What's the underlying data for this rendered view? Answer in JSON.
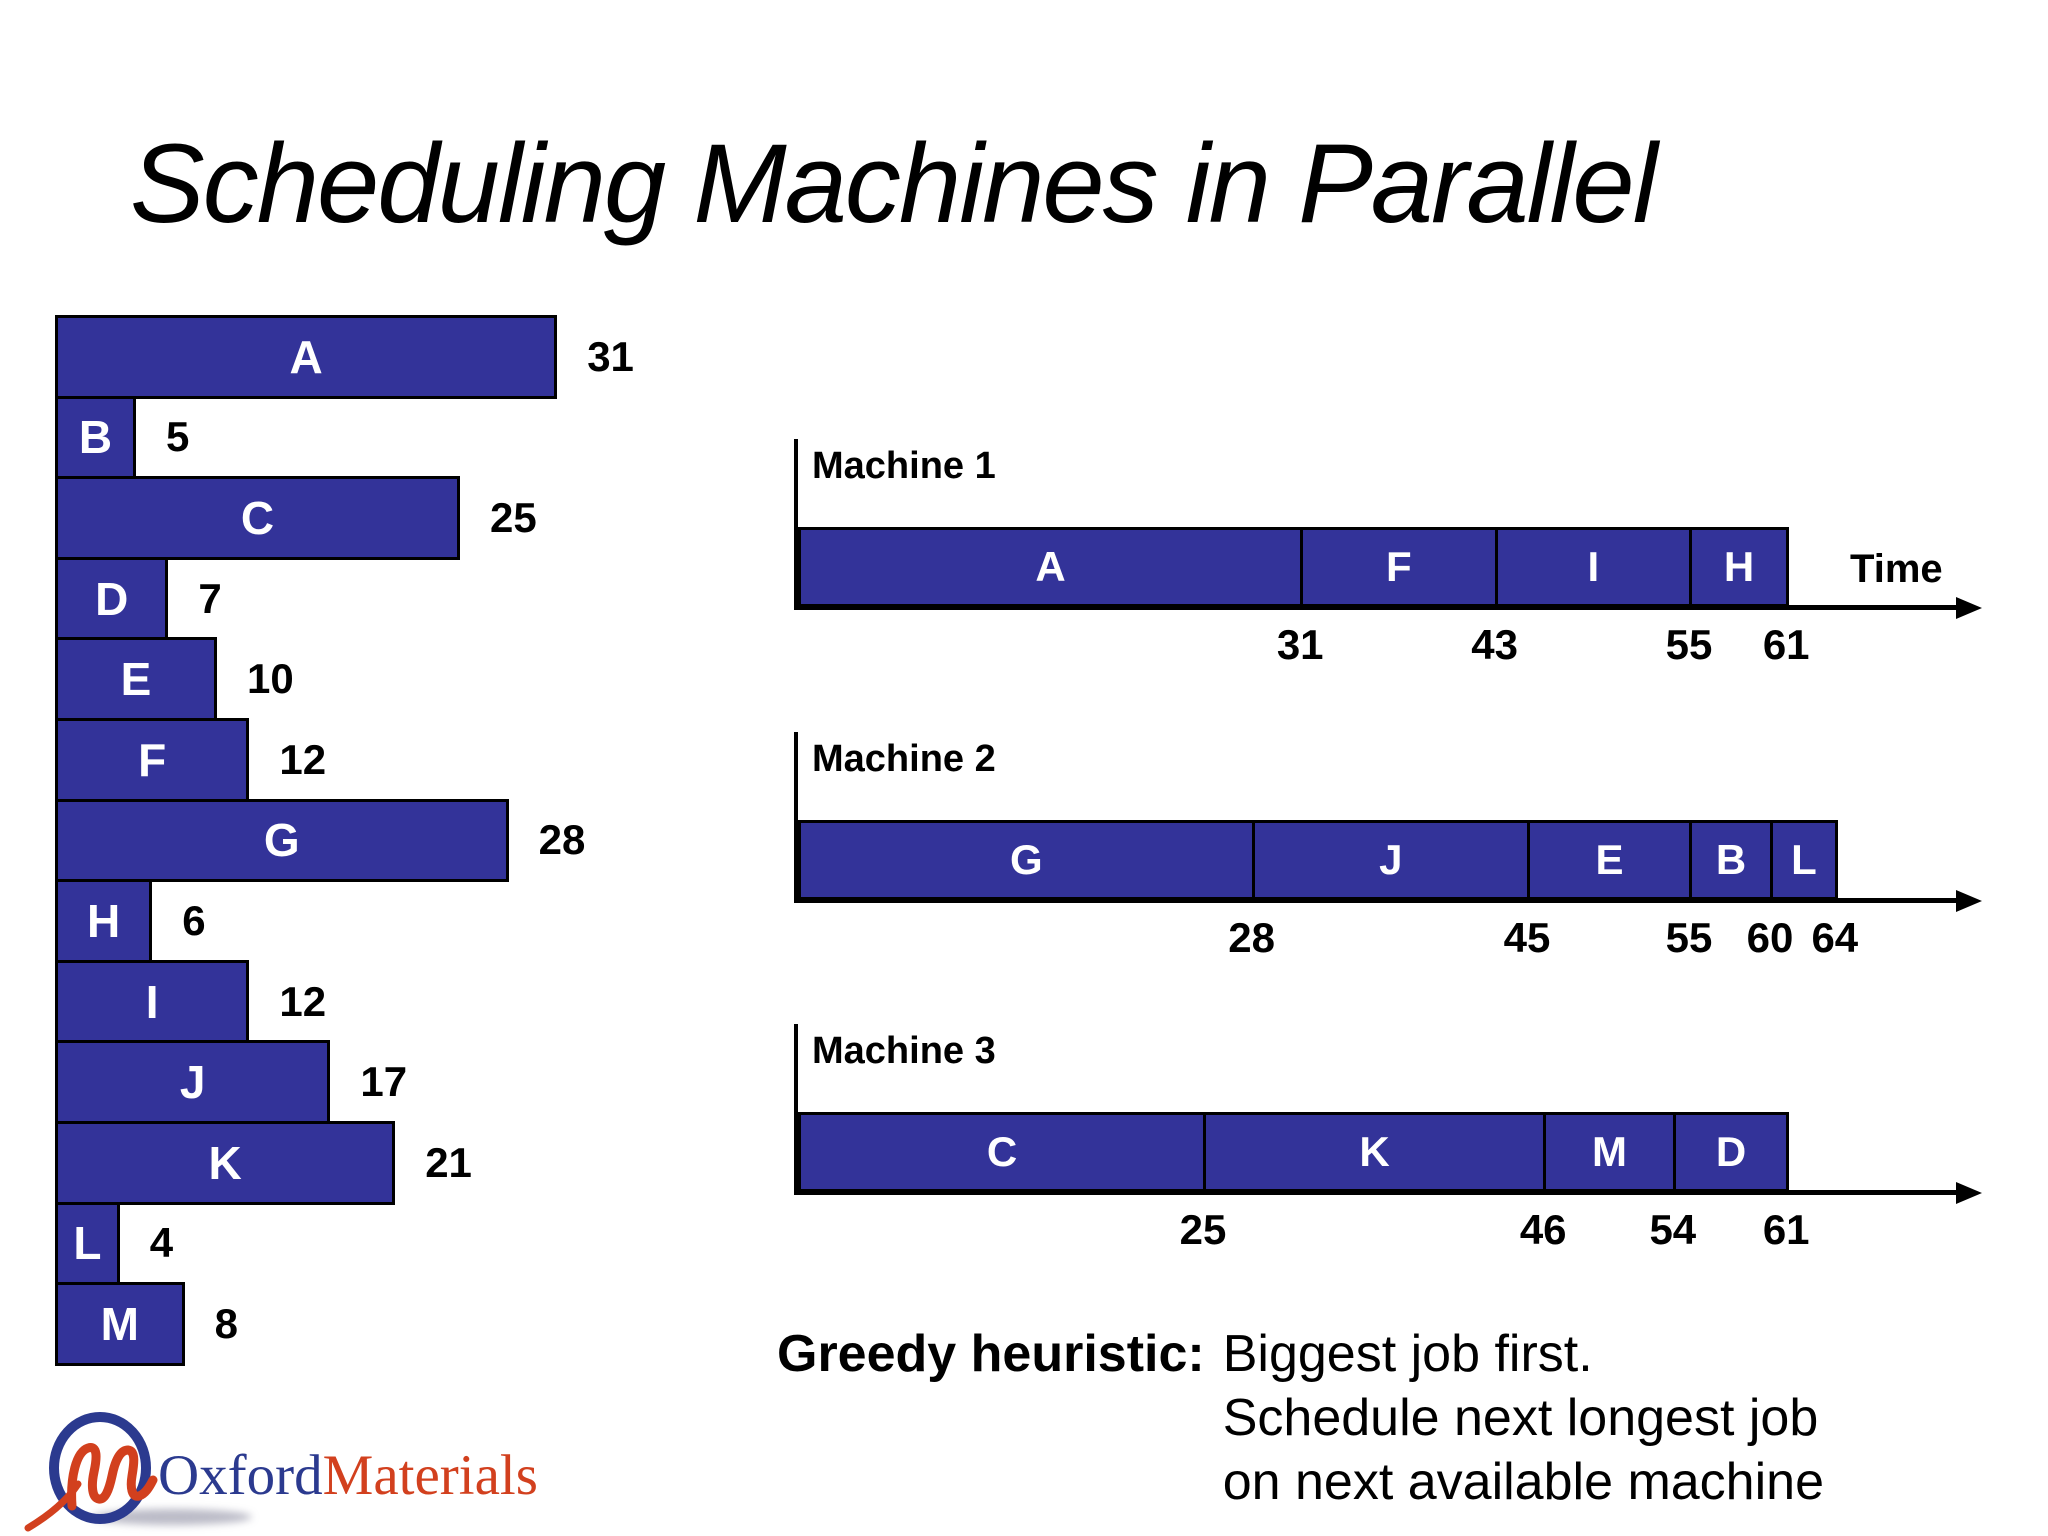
{
  "title": "Scheduling Machines in Parallel",
  "colors": {
    "bar_fill": "#333399",
    "logo_navy": "#2b3a8f",
    "logo_red": "#d2401e"
  },
  "chart_data": [
    {
      "type": "bar",
      "name": "job-durations",
      "orientation": "horizontal",
      "categories": [
        "A",
        "B",
        "C",
        "D",
        "E",
        "F",
        "G",
        "H",
        "I",
        "J",
        "K",
        "L",
        "M"
      ],
      "values": [
        31,
        5,
        25,
        7,
        10,
        12,
        28,
        6,
        12,
        17,
        21,
        4,
        8
      ],
      "title": "",
      "xlabel": "",
      "ylabel": "",
      "legend": false,
      "grid": false
    },
    {
      "type": "bar",
      "subtype": "gantt",
      "title": "Machine 1",
      "xlabel": "Time",
      "segments": [
        {
          "label": "A",
          "start": 0,
          "end": 31
        },
        {
          "label": "F",
          "start": 31,
          "end": 43
        },
        {
          "label": "I",
          "start": 43,
          "end": 55
        },
        {
          "label": "H",
          "start": 55,
          "end": 61
        }
      ],
      "ticks": [
        31,
        43,
        55,
        61
      ]
    },
    {
      "type": "bar",
      "subtype": "gantt",
      "title": "Machine 2",
      "xlabel": "",
      "segments": [
        {
          "label": "G",
          "start": 0,
          "end": 28
        },
        {
          "label": "J",
          "start": 28,
          "end": 45
        },
        {
          "label": "E",
          "start": 45,
          "end": 55
        },
        {
          "label": "B",
          "start": 55,
          "end": 60
        },
        {
          "label": "L",
          "start": 60,
          "end": 64
        }
      ],
      "ticks": [
        28,
        45,
        55,
        60,
        64
      ]
    },
    {
      "type": "bar",
      "subtype": "gantt",
      "title": "Machine 3",
      "xlabel": "",
      "segments": [
        {
          "label": "C",
          "start": 0,
          "end": 25
        },
        {
          "label": "K",
          "start": 25,
          "end": 46
        },
        {
          "label": "M",
          "start": 46,
          "end": 54
        },
        {
          "label": "D",
          "start": 54,
          "end": 61
        }
      ],
      "ticks": [
        25,
        46,
        54,
        61
      ]
    }
  ],
  "greedy": {
    "label": "Greedy heuristic:",
    "lines": [
      "Biggest job first.",
      "Schedule next longest job",
      "on next available machine"
    ]
  },
  "logo": {
    "oxford": "Oxford",
    "materials": "Materials"
  }
}
